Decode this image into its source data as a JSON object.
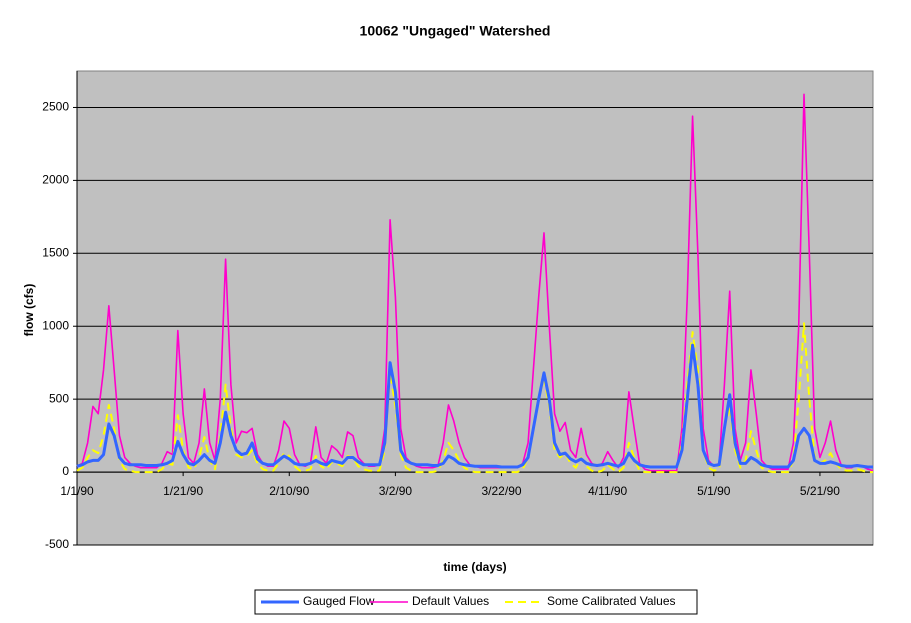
{
  "chart_data": {
    "type": "line",
    "title": "10062 \"Ungaged\" Watershed",
    "x_label": "time (days)",
    "y_label": "flow (cfs)",
    "categories": [
      "1/1/90",
      null,
      null,
      null,
      null,
      null,
      null,
      null,
      null,
      null,
      null,
      null,
      null,
      null,
      null,
      null,
      null,
      null,
      null,
      null,
      "1/21/90",
      null,
      null,
      null,
      null,
      null,
      null,
      null,
      null,
      null,
      null,
      null,
      null,
      null,
      null,
      null,
      null,
      null,
      null,
      null,
      "2/10/90",
      null,
      null,
      null,
      null,
      null,
      null,
      null,
      null,
      null,
      null,
      null,
      null,
      null,
      null,
      null,
      null,
      null,
      null,
      null,
      "3/2/90",
      null,
      null,
      null,
      null,
      null,
      null,
      null,
      null,
      null,
      null,
      null,
      null,
      null,
      null,
      null,
      null,
      null,
      null,
      null,
      "3/22/90",
      null,
      null,
      null,
      null,
      null,
      null,
      null,
      null,
      null,
      null,
      null,
      null,
      null,
      null,
      null,
      null,
      null,
      null,
      null,
      "4/11/90",
      null,
      null,
      null,
      null,
      null,
      null,
      null,
      null,
      null,
      null,
      null,
      null,
      null,
      null,
      null,
      null,
      null,
      null,
      null,
      "5/1/90",
      null,
      null,
      null,
      null,
      null,
      null,
      null,
      null,
      null,
      null,
      null,
      null,
      null,
      null,
      null,
      null,
      null,
      null,
      null,
      "5/21/90",
      null,
      null,
      null,
      null,
      null,
      null,
      null,
      null,
      null,
      null
    ],
    "series": [
      {
        "name": "Gauged Flow",
        "color": "#3366ff",
        "width": 3,
        "dashed": false,
        "values": [
          40,
          50,
          70,
          80,
          80,
          120,
          330,
          250,
          100,
          60,
          50,
          50,
          50,
          45,
          45,
          45,
          50,
          60,
          80,
          210,
          120,
          60,
          50,
          80,
          120,
          80,
          60,
          200,
          410,
          250,
          150,
          120,
          130,
          200,
          90,
          60,
          50,
          50,
          80,
          110,
          90,
          60,
          50,
          50,
          60,
          80,
          60,
          50,
          80,
          70,
          60,
          100,
          100,
          70,
          50,
          50,
          50,
          50,
          200,
          750,
          550,
          150,
          80,
          60,
          50,
          50,
          50,
          45,
          45,
          60,
          110,
          90,
          60,
          50,
          45,
          40,
          40,
          40,
          40,
          40,
          35,
          35,
          35,
          35,
          50,
          100,
          300,
          500,
          680,
          500,
          200,
          120,
          130,
          90,
          70,
          90,
          60,
          50,
          45,
          50,
          60,
          50,
          40,
          60,
          130,
          80,
          50,
          40,
          35,
          35,
          35,
          35,
          35,
          35,
          150,
          500,
          870,
          600,
          150,
          60,
          45,
          50,
          300,
          530,
          200,
          60,
          60,
          100,
          80,
          50,
          40,
          35,
          35,
          35,
          35,
          80,
          250,
          300,
          250,
          80,
          60,
          60,
          70,
          60,
          45,
          40,
          40,
          45,
          40,
          35,
          35
        ]
      },
      {
        "name": "Default Values",
        "color": "#ff00cc",
        "width": 1.6,
        "dashed": false,
        "values": [
          40,
          60,
          200,
          450,
          400,
          700,
          1140,
          700,
          250,
          100,
          60,
          40,
          30,
          30,
          30,
          30,
          60,
          140,
          120,
          970,
          400,
          100,
          60,
          200,
          570,
          200,
          80,
          500,
          1460,
          600,
          200,
          280,
          270,
          300,
          120,
          60,
          40,
          40,
          150,
          350,
          300,
          120,
          50,
          40,
          60,
          310,
          100,
          60,
          180,
          150,
          100,
          275,
          250,
          100,
          60,
          40,
          40,
          50,
          300,
          1730,
          1200,
          300,
          100,
          60,
          40,
          30,
          30,
          30,
          40,
          200,
          460,
          350,
          200,
          100,
          50,
          40,
          30,
          30,
          30,
          30,
          30,
          30,
          30,
          30,
          60,
          200,
          700,
          1200,
          1640,
          1000,
          400,
          280,
          340,
          150,
          100,
          300,
          120,
          60,
          40,
          60,
          140,
          80,
          30,
          100,
          550,
          300,
          60,
          20,
          10,
          10,
          10,
          10,
          10,
          10,
          300,
          1200,
          2440,
          1500,
          300,
          80,
          40,
          60,
          600,
          1240,
          300,
          80,
          200,
          700,
          400,
          80,
          40,
          20,
          20,
          20,
          20,
          200,
          1000,
          2590,
          1500,
          300,
          100,
          200,
          350,
          150,
          50,
          30,
          30,
          50,
          40,
          20,
          10
        ]
      },
      {
        "name": "Some Calibrated Values",
        "color": "#ffff00",
        "width": 2,
        "dashed": true,
        "values": [
          10,
          30,
          100,
          150,
          130,
          250,
          460,
          300,
          80,
          20,
          10,
          0,
          0,
          0,
          0,
          0,
          20,
          60,
          50,
          390,
          150,
          30,
          20,
          100,
          240,
          80,
          20,
          250,
          600,
          300,
          120,
          100,
          110,
          150,
          60,
          20,
          10,
          10,
          60,
          130,
          110,
          40,
          10,
          10,
          20,
          110,
          40,
          20,
          70,
          60,
          40,
          110,
          100,
          40,
          20,
          10,
          10,
          10,
          150,
          680,
          450,
          120,
          30,
          10,
          0,
          0,
          0,
          0,
          10,
          80,
          200,
          150,
          80,
          30,
          10,
          0,
          0,
          0,
          0,
          0,
          0,
          0,
          0,
          0,
          20,
          100,
          300,
          500,
          640,
          450,
          150,
          100,
          130,
          60,
          30,
          100,
          40,
          10,
          0,
          10,
          50,
          20,
          0,
          30,
          200,
          100,
          10,
          0,
          0,
          0,
          0,
          0,
          0,
          0,
          200,
          600,
          960,
          700,
          150,
          30,
          10,
          20,
          300,
          450,
          150,
          30,
          80,
          280,
          150,
          30,
          10,
          0,
          0,
          0,
          0,
          80,
          500,
          1020,
          500,
          100,
          60,
          80,
          130,
          60,
          20,
          10,
          10,
          20,
          10,
          0,
          0
        ]
      }
    ],
    "ylim": [
      -500,
      2750
    ],
    "yticks": [
      -500,
      0,
      500,
      1000,
      1500,
      2000,
      2500
    ],
    "grid": true,
    "legend": "bottom"
  }
}
